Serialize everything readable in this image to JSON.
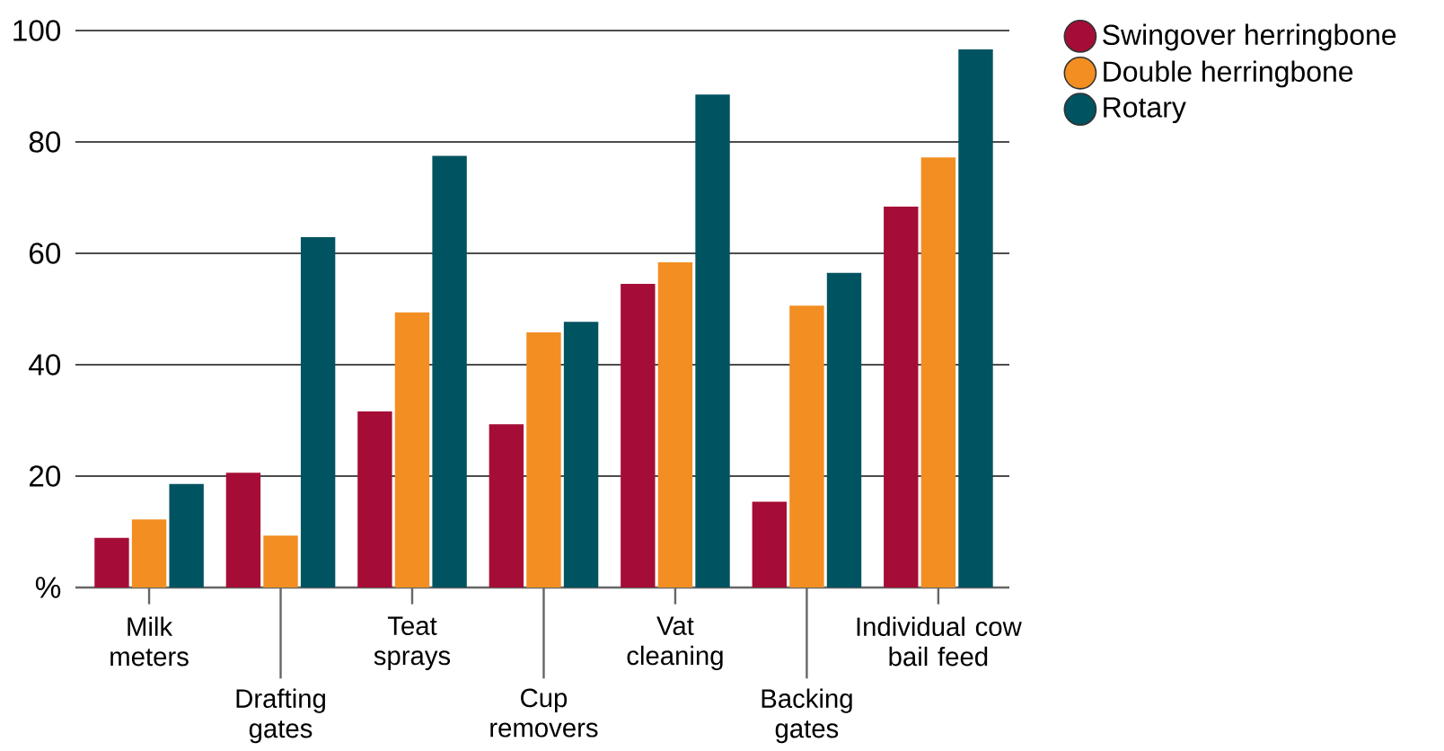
{
  "chart_data": {
    "type": "bar",
    "categories": [
      "Milk meters",
      "Drafting gates",
      "Teat sprays",
      "Cup removers",
      "Vat cleaning",
      "Backing gates",
      "Individual cow bail feed"
    ],
    "series": [
      {
        "name": "Swingover herringbone",
        "color": "#a50d36",
        "values": [
          8.9,
          20.6,
          31.6,
          29.3,
          54.5,
          15.4,
          68.4
        ]
      },
      {
        "name": "Double herringbone",
        "color": "#f28e22",
        "values": [
          12.2,
          9.3,
          49.4,
          45.8,
          58.4,
          50.6,
          77.2
        ]
      },
      {
        "name": "Rotary",
        "color": "#005360",
        "values": [
          18.6,
          62.9,
          77.5,
          47.7,
          88.5,
          56.5,
          96.6
        ]
      }
    ],
    "ylim": [
      0,
      100
    ],
    "yticks": [
      {
        "value": 0,
        "label": "%"
      },
      20,
      40,
      60,
      80,
      100
    ],
    "grid": "y",
    "legend": "top right"
  }
}
